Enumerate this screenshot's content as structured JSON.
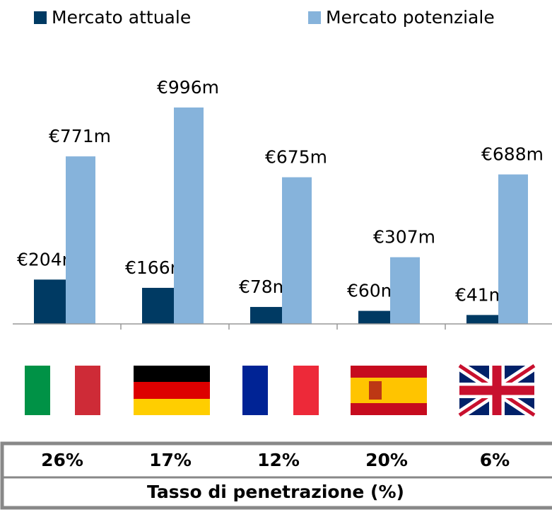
{
  "chart_data": {
    "type": "bar",
    "categories": [
      null,
      null,
      null,
      null,
      null
    ],
    "series": [
      {
        "name": "Mercato attuale",
        "color": "#003a63",
        "values": [
          204,
          166,
          78,
          60,
          41
        ],
        "value_labels": [
          "€204m",
          "€166m",
          "€78m",
          "€60m",
          "€41m"
        ]
      },
      {
        "name": "Mercato potenziale",
        "color": "#86b3db",
        "values": [
          771,
          996,
          675,
          307,
          688
        ],
        "value_labels": [
          "€771m",
          "€996m",
          "€675m",
          "€307m",
          "€688m"
        ]
      }
    ]
  },
  "table": {
    "cells": [
      "26%",
      "17%",
      "12%",
      "20%",
      "6%"
    ],
    "title": "Tasso di penetrazione (%)"
  }
}
